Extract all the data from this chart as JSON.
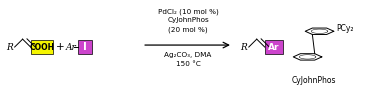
{
  "fig_width": 3.78,
  "fig_height": 0.99,
  "dpi": 100,
  "bg_color": "#ffffff",
  "yellow_box_color": "#f5f500",
  "purple_box_color": "#cc44cc",
  "cond1": "PdCl₂ (10 mol %)",
  "cond2": "CyJohnPhos",
  "cond3": "(20 mol %)",
  "cond4": "Ag₂CO₃, DMA",
  "cond5": "150 °C",
  "label_COOH": "COOH",
  "label_I": "I",
  "label_Ar": "Ar",
  "label_CyJohnPhos": "CyJohnPhos",
  "label_PCy2": "PCy₂",
  "fs_main": 6.5,
  "fs_small": 5.0,
  "fs_cond": 5.2
}
